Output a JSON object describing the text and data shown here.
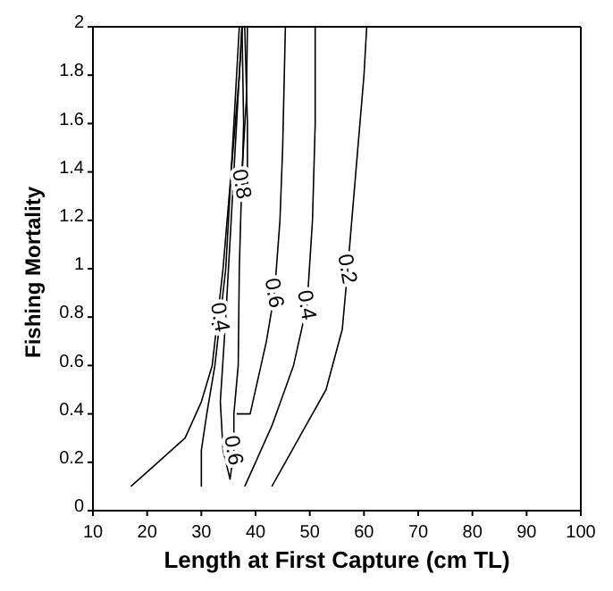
{
  "chart_data": {
    "type": "line",
    "xlabel": "Length at First Capture (cm TL)",
    "ylabel": "Fishing Mortality",
    "xlim": [
      10,
      100
    ],
    "xticks": [
      10,
      20,
      30,
      40,
      50,
      60,
      70,
      80,
      90,
      100
    ],
    "ylim": [
      0,
      2
    ],
    "yticks": [
      0,
      0.2,
      0.4,
      0.6,
      0.8,
      1,
      1.2,
      1.4,
      1.6,
      1.8,
      2
    ],
    "legend": false,
    "marker": "none",
    "line_style": "solid",
    "series": [
      {
        "name": "0.2",
        "color": "#000000",
        "x": [
          17,
          22,
          27,
          30,
          32,
          33,
          34,
          35.5,
          37,
          37.5
        ],
        "values": [
          0.1,
          0.2,
          0.3,
          0.45,
          0.6,
          0.8,
          1.0,
          1.4,
          1.8,
          2
        ]
      },
      {
        "name": "0.4",
        "color": "#000000",
        "x": [
          30,
          30,
          31,
          32.5,
          33.5,
          34.5,
          35.5,
          36.5,
          37
        ],
        "values": [
          0.1,
          0.25,
          0.4,
          0.6,
          0.8,
          1.0,
          1.4,
          1.8,
          2
        ]
      },
      {
        "name": "0.6",
        "color": "#000000",
        "x": [
          37.5,
          36.5,
          35.5,
          34.5,
          33.5,
          34,
          35.3,
          36,
          36,
          36.8,
          37,
          37.5,
          38.3,
          38.5
        ],
        "values": [
          2,
          1.6,
          1.2,
          0.8,
          0.45,
          0.25,
          0.13,
          0.25,
          0.4,
          0.6,
          1.0,
          1.4,
          1.7,
          2
        ]
      },
      {
        "name": "0.8",
        "color": "#000000",
        "x": [
          38,
          38.5,
          38.5,
          37.5,
          37.8,
          37.5
        ],
        "values": [
          2,
          1.6,
          1.35,
          1.35,
          1.6,
          2
        ]
      },
      {
        "name": "0.6",
        "color": "#000000",
        "x": [
          36.5,
          39,
          42,
          43.5,
          44.5,
          45,
          45.5
        ],
        "values": [
          0.4,
          0.4,
          0.7,
          0.9,
          1.2,
          1.5,
          2
        ]
      },
      {
        "name": "0.4",
        "color": "#000000",
        "x": [
          38,
          40,
          43,
          47,
          49.5,
          50.5,
          51,
          51
        ],
        "values": [
          0.1,
          0.2,
          0.35,
          0.6,
          0.85,
          1.2,
          1.6,
          2
        ]
      },
      {
        "name": "0.2",
        "color": "#000000",
        "x": [
          43,
          48,
          53,
          56,
          57,
          58.5,
          60,
          60.5
        ],
        "values": [
          0.1,
          0.3,
          0.5,
          0.75,
          1.0,
          1.4,
          1.8,
          2
        ]
      }
    ]
  }
}
